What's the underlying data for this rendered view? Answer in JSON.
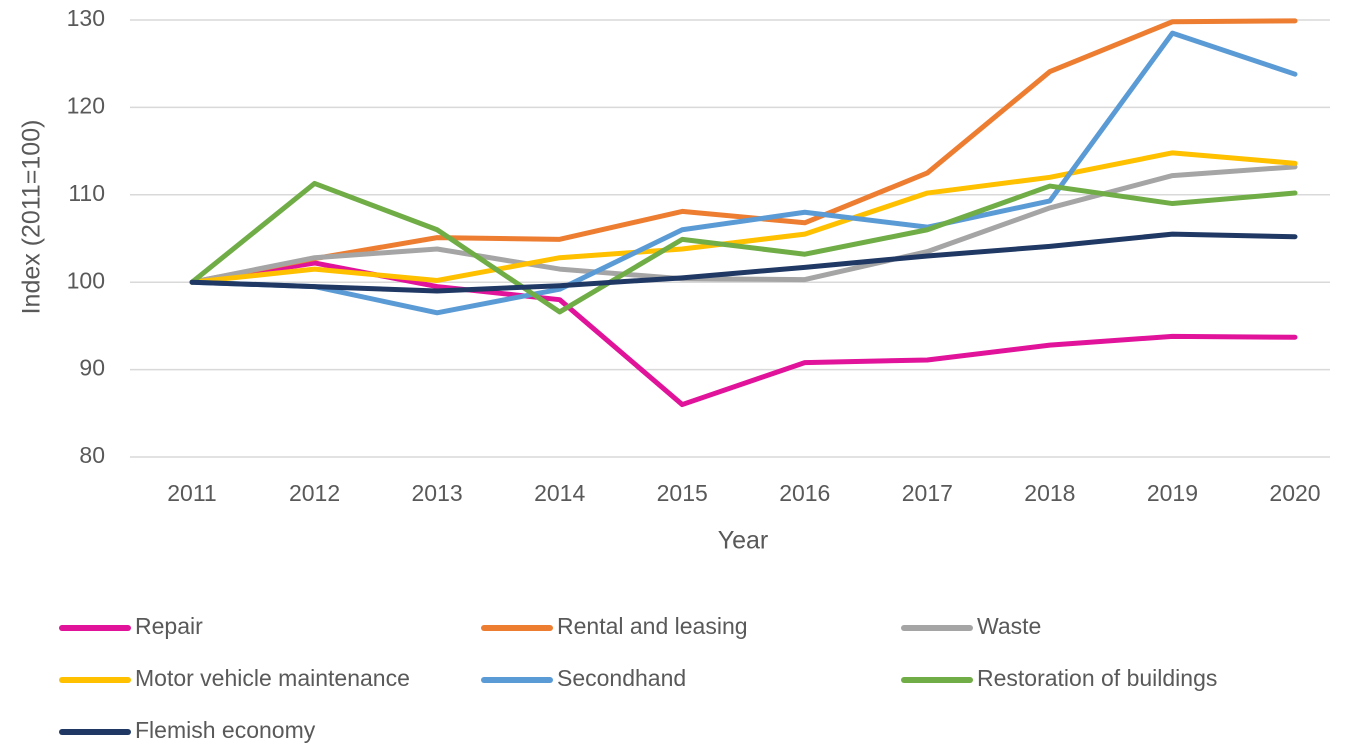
{
  "chart_data": {
    "type": "line",
    "x_label": "Year",
    "y_label": "Index (2011=100)",
    "categories": [
      "2011",
      "2012",
      "2013",
      "2014",
      "2015",
      "2016",
      "2017",
      "2018",
      "2019",
      "2020"
    ],
    "ylim": [
      80,
      130
    ],
    "yticks": [
      80,
      90,
      100,
      110,
      120,
      130
    ],
    "grid": true,
    "series": [
      {
        "name": "Repair",
        "color": "#e0139a",
        "values": [
          100,
          102.2,
          99.5,
          98,
          86,
          90.8,
          91.1,
          92.8,
          93.8,
          93.7
        ]
      },
      {
        "name": "Rental and leasing",
        "color": "#ed7d31",
        "values": [
          100,
          102.7,
          105.1,
          104.9,
          108.1,
          106.8,
          112.5,
          124.1,
          129.8,
          129.9
        ]
      },
      {
        "name": "Waste",
        "color": "#a5a5a5",
        "values": [
          100,
          102.8,
          103.8,
          101.5,
          100.4,
          100.3,
          103.5,
          108.5,
          112.2,
          113.2
        ]
      },
      {
        "name": "Motor vehicle maintenance",
        "color": "#ffc000",
        "values": [
          100,
          101.5,
          100.2,
          102.8,
          103.8,
          105.5,
          110.2,
          112,
          114.8,
          113.6
        ]
      },
      {
        "name": "Secondhand",
        "color": "#5b9bd5",
        "values": [
          100,
          99.5,
          96.5,
          99.2,
          106,
          108,
          106.3,
          109.3,
          128.5,
          123.8
        ]
      },
      {
        "name": "Restoration of buildings",
        "color": "#70ad47",
        "values": [
          100,
          111.3,
          106,
          96.6,
          104.9,
          103.2,
          106,
          111,
          109,
          110.2
        ]
      },
      {
        "name": "Flemish economy",
        "color": "#1f3864",
        "values": [
          100,
          99.5,
          99,
          99.6,
          100.5,
          101.7,
          103,
          104.1,
          105.5,
          105.2
        ]
      }
    ]
  }
}
